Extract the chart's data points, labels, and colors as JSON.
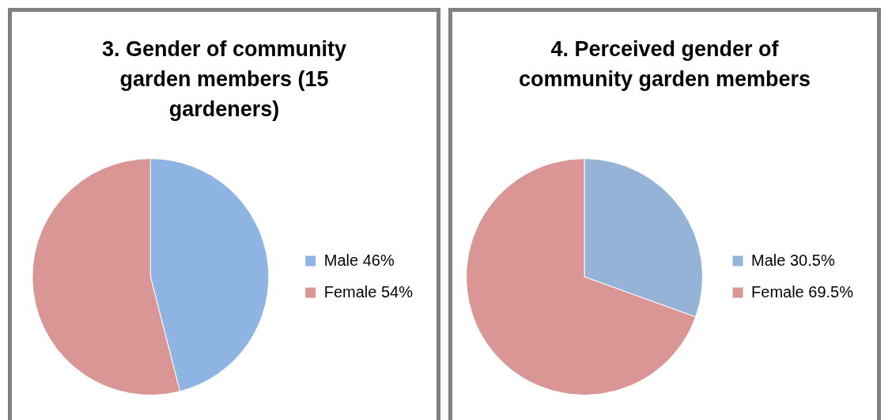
{
  "chart_data": [
    {
      "type": "pie",
      "title": "3. Gender of community garden members (15 gardeners)",
      "categories": [
        "Male 46%",
        "Female 54%"
      ],
      "values": [
        46,
        54
      ],
      "colors": [
        "#8eb4e3",
        "#d99694"
      ],
      "legend": "right"
    },
    {
      "type": "pie",
      "title": "4. Perceived gender of community garden members",
      "categories": [
        "Male 30.5%",
        "Female 69.5%"
      ],
      "values": [
        30.5,
        69.5
      ],
      "colors": [
        "#95b3d7",
        "#d99694"
      ],
      "legend": "right"
    }
  ]
}
